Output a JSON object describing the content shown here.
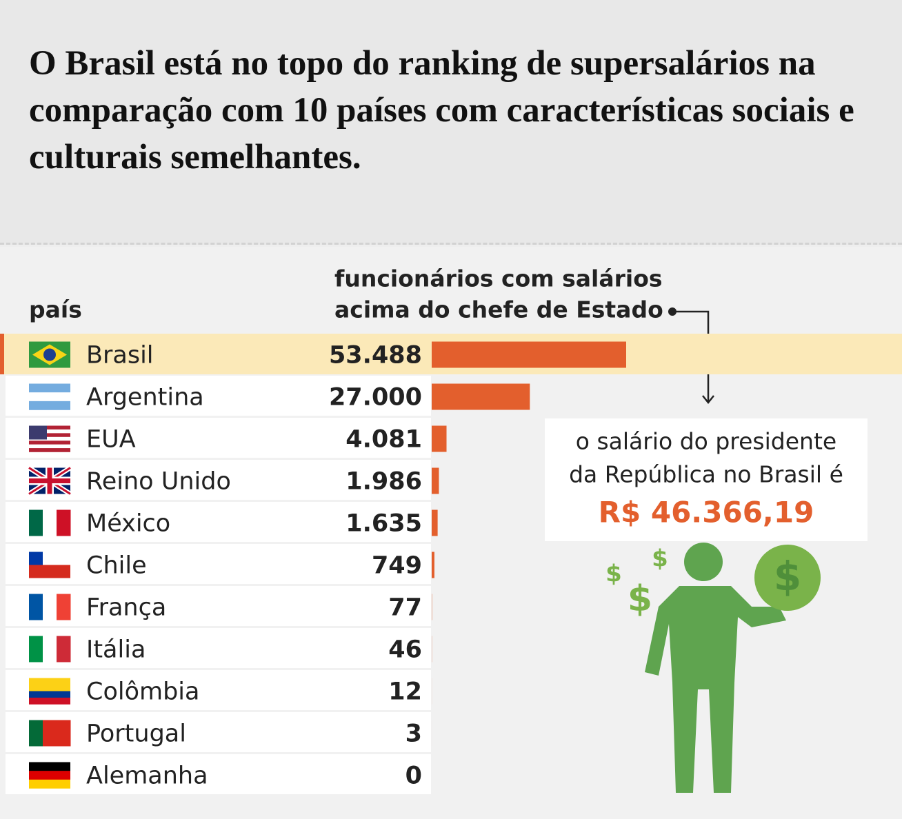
{
  "chart_data": {
    "type": "bar",
    "title": "O Brasil está no topo do ranking de supersalários na comparação com 10 países com características sociais e culturais semelhantes.",
    "category_header": "país",
    "value_header": [
      "funcionários com salários",
      "acima do chefe de Estado"
    ],
    "categories": [
      "Brasil",
      "Argentina",
      "EUA",
      "Reino Unido",
      "México",
      "Chile",
      "França",
      "Itália",
      "Colômbia",
      "Portugal",
      "Alemanha"
    ],
    "values": [
      53488,
      27000,
      4081,
      1986,
      1635,
      749,
      77,
      46,
      12,
      3,
      0
    ],
    "value_labels": [
      "53.488",
      "27.000",
      "4.081",
      "1.986",
      "1.635",
      "749",
      "77",
      "46",
      "12",
      "3",
      "0"
    ],
    "color": "#e35f2d",
    "annotation": {
      "lines": [
        "o salário do presidente",
        "da República no Brasil é"
      ],
      "amount": "R$ 46.366,19"
    }
  }
}
